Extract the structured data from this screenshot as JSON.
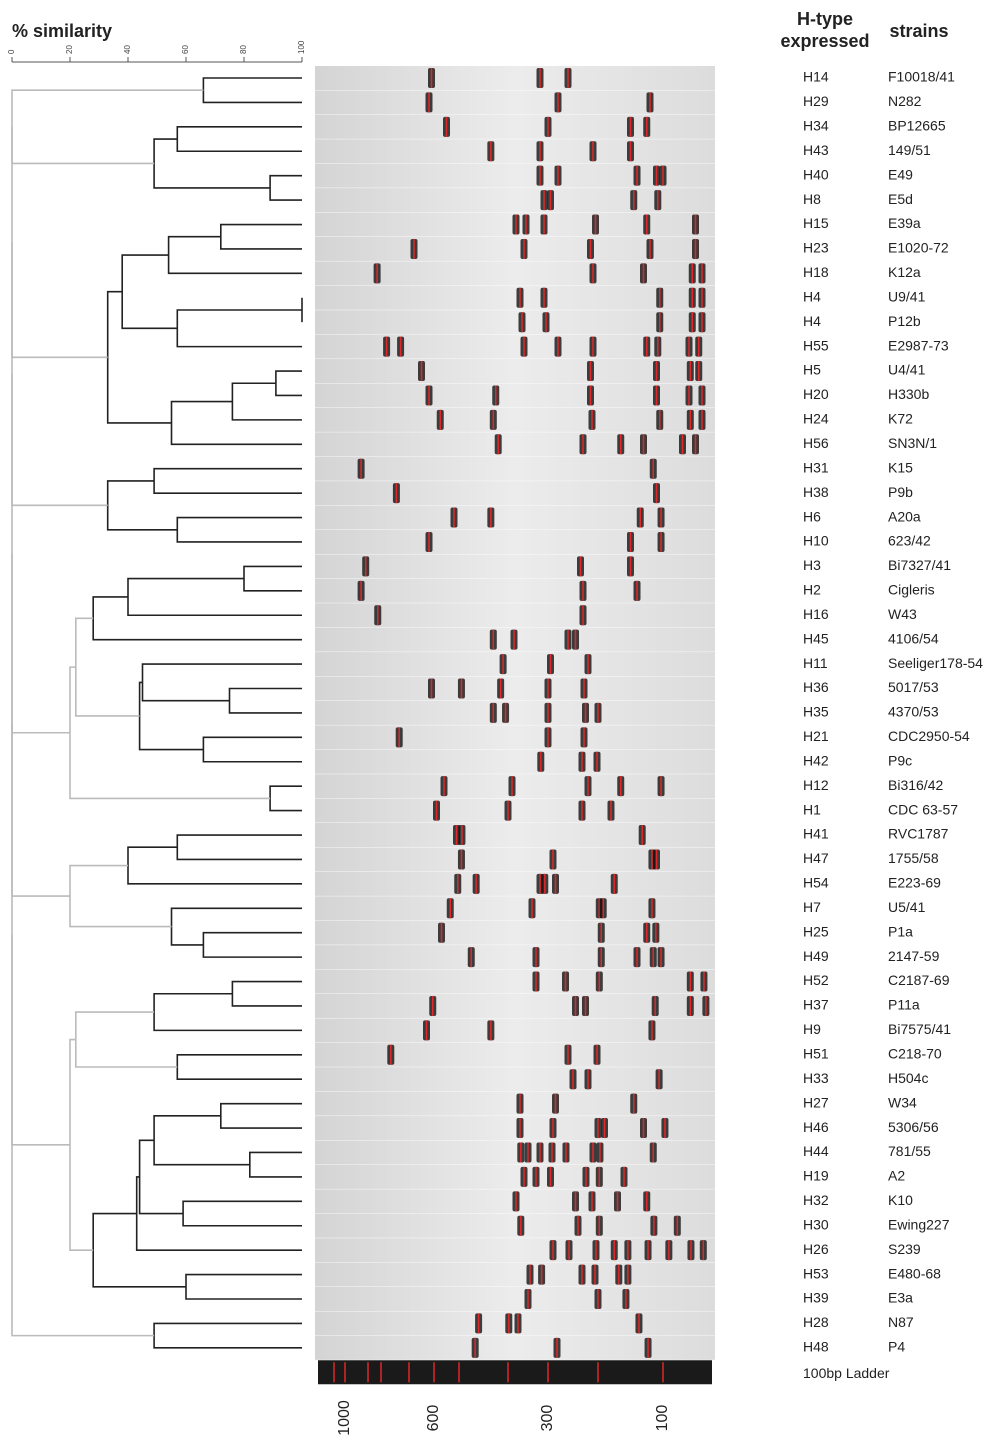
{
  "scale": {
    "label": "% similarity",
    "ticks": [
      0,
      20,
      40,
      60,
      80,
      100
    ]
  },
  "headers": {
    "htype": [
      "H-type",
      "expressed"
    ],
    "strains": "strains"
  },
  "rows": [
    {
      "htype": "H14",
      "strain": "F10018/41",
      "bands": [
        610,
        320,
        260
      ]
    },
    {
      "htype": "H29",
      "strain": "N282",
      "bands": [
        620,
        280,
        120
      ]
    },
    {
      "htype": "H34",
      "strain": "BP12665",
      "bands": [
        550,
        300,
        150,
        125
      ]
    },
    {
      "htype": "H43",
      "strain": "149/51",
      "bands": [
        435,
        320,
        210,
        150
      ]
    },
    {
      "htype": "H40",
      "strain": "E49",
      "bands": [
        320,
        280,
        140,
        110,
        100
      ]
    },
    {
      "htype": "H8",
      "strain": "E5d",
      "bands": [
        310,
        295,
        145,
        108
      ]
    },
    {
      "htype": "H15",
      "strain": "E39a",
      "bands": [
        380,
        355,
        310,
        205,
        125,
        50
      ]
    },
    {
      "htype": "H23",
      "strain": "E1020-72",
      "bands": [
        680,
        360,
        215,
        120,
        50
      ]
    },
    {
      "htype": "H18",
      "strain": "K12a",
      "bands": [
        830,
        210,
        130,
        55,
        40
      ]
    },
    {
      "htype": "H4",
      "strain": "U9/41",
      "bands": [
        370,
        310,
        105,
        55,
        40
      ]
    },
    {
      "htype": "H4",
      "strain": "P12b",
      "bands": [
        365,
        305,
        105,
        55,
        40
      ]
    },
    {
      "htype": "H55",
      "strain": "E2987-73",
      "bands": [
        780,
        730,
        360,
        280,
        210,
        125,
        108,
        60,
        45
      ]
    },
    {
      "htype": "H5",
      "strain": "U4/41",
      "bands": [
        650,
        215,
        110,
        58,
        45
      ]
    },
    {
      "htype": "H20",
      "strain": "H330b",
      "bands": [
        620,
        425,
        215,
        110,
        60,
        40
      ]
    },
    {
      "htype": "H24",
      "strain": "K72",
      "bands": [
        575,
        430,
        212,
        105,
        58,
        40
      ]
    },
    {
      "htype": "H56",
      "strain": "SN3N/1",
      "bands": [
        420,
        230,
        165,
        130,
        70,
        50
      ]
    },
    {
      "htype": "H31",
      "strain": "K15",
      "bands": [
        930,
        115
      ]
    },
    {
      "htype": "H38",
      "strain": "P9b",
      "bands": [
        745,
        110
      ]
    },
    {
      "htype": "H6",
      "strain": "A20a",
      "bands": [
        520,
        435,
        135,
        103
      ]
    },
    {
      "htype": "H10",
      "strain": "623/42",
      "bands": [
        620,
        150,
        103
      ]
    },
    {
      "htype": "H3",
      "strain": "Bi7327/41",
      "bands": [
        910,
        235,
        150
      ]
    },
    {
      "htype": "H2",
      "strain": "Cigleris",
      "bands": [
        930,
        230,
        140
      ]
    },
    {
      "htype": "H16",
      "strain": "W43",
      "bands": [
        825,
        230
      ]
    },
    {
      "htype": "H45",
      "strain": "4106/54",
      "bands": [
        430,
        385,
        260,
        245
      ]
    },
    {
      "htype": "H11",
      "strain": "Seeliger178-54",
      "bands": [
        410,
        295,
        220
      ]
    },
    {
      "htype": "H36",
      "strain": "5017/53",
      "bands": [
        610,
        495,
        415,
        300,
        228
      ]
    },
    {
      "htype": "H35",
      "strain": "4370/53",
      "bands": [
        430,
        405,
        300,
        225,
        200
      ]
    },
    {
      "htype": "H21",
      "strain": "CDC2950-54",
      "bands": [
        735,
        300,
        228
      ]
    },
    {
      "htype": "H42",
      "strain": "P9c",
      "bands": [
        318,
        232,
        202
      ]
    },
    {
      "htype": "H12",
      "strain": "Bi316/42",
      "bands": [
        560,
        390,
        220,
        165,
        103
      ]
    },
    {
      "htype": "H1",
      "strain": "CDC 63-57",
      "bands": [
        590,
        400,
        232,
        180
      ]
    },
    {
      "htype": "H41",
      "strain": "RVC1787",
      "bands": [
        510,
        494,
        132
      ]
    },
    {
      "htype": "H47",
      "strain": "1755/58",
      "bands": [
        495,
        290,
        117,
        110
      ]
    },
    {
      "htype": "H54",
      "strain": "E223-69",
      "bands": [
        505,
        465,
        320,
        308,
        285,
        175
      ]
    },
    {
      "htype": "H7",
      "strain": "U5/41",
      "bands": [
        535,
        340,
        198,
        192,
        117
      ]
    },
    {
      "htype": "H25",
      "strain": "P1a",
      "bands": [
        570,
        195,
        125,
        111
      ]
    },
    {
      "htype": "H49",
      "strain": "2147-59",
      "bands": [
        475,
        330,
        195,
        140,
        115,
        103
      ]
    },
    {
      "htype": "H52",
      "strain": "C2187-69",
      "bands": [
        330,
        265,
        198,
        58,
        37
      ]
    },
    {
      "htype": "H37",
      "strain": "P11a",
      "bands": [
        605,
        245,
        225,
        112,
        58,
        34
      ]
    },
    {
      "htype": "H9",
      "strain": "Bi7575/41",
      "bands": [
        630,
        435,
        117
      ]
    },
    {
      "htype": "H51",
      "strain": "C218-70",
      "bands": [
        765,
        260,
        202
      ]
    },
    {
      "htype": "H33",
      "strain": "H504c",
      "bands": [
        250,
        220,
        106
      ]
    },
    {
      "htype": "H27",
      "strain": "W34",
      "bands": [
        370,
        285,
        145
      ]
    },
    {
      "htype": "H46",
      "strain": "5306/56",
      "bands": [
        370,
        290,
        200,
        190,
        130,
        97
      ]
    },
    {
      "htype": "H44",
      "strain": "781/55",
      "bands": [
        368,
        350,
        320,
        292,
        264,
        210,
        197,
        115
      ]
    },
    {
      "htype": "H19",
      "strain": "A2",
      "bands": [
        360,
        330,
        295,
        224,
        198,
        160
      ]
    },
    {
      "htype": "H32",
      "strain": "K10",
      "bands": [
        380,
        245,
        212,
        170,
        125
      ]
    },
    {
      "htype": "H30",
      "strain": "Ewing227",
      "bands": [
        368,
        240,
        198,
        114,
        78
      ]
    },
    {
      "htype": "H26",
      "strain": "S239",
      "bands": [
        290,
        258,
        204,
        175,
        154,
        123,
        91,
        57,
        38
      ]
    },
    {
      "htype": "H53",
      "strain": "E480-68",
      "bands": [
        345,
        316,
        232,
        206,
        168,
        154
      ]
    },
    {
      "htype": "H39",
      "strain": "E3a",
      "bands": [
        350,
        200,
        157
      ]
    },
    {
      "htype": "H28",
      "strain": "N87",
      "bands": [
        460,
        398,
        375,
        137
      ]
    },
    {
      "htype": "H48",
      "strain": "P4",
      "bands": [
        467,
        282,
        123
      ]
    }
  ],
  "ladder": {
    "label": "100bp Ladder",
    "bands": [
      1500,
      1000,
      900,
      800,
      700,
      600,
      500,
      400,
      300,
      200,
      100
    ],
    "ticks": [
      1000,
      600,
      300,
      100
    ]
  },
  "dendrogram": {
    "merges": [
      [
        0,
        1,
        66
      ],
      [
        2,
        3,
        57
      ],
      [
        4,
        5,
        89
      ],
      [
        54,
        55,
        49
      ],
      [
        6,
        7,
        72
      ],
      [
        57,
        8,
        54
      ],
      [
        9,
        10,
        100
      ],
      [
        59,
        11,
        57
      ],
      [
        58,
        60,
        38
      ],
      [
        12,
        13,
        91
      ],
      [
        62,
        14,
        76
      ],
      [
        63,
        15,
        55
      ],
      [
        61,
        64,
        33
      ],
      [
        16,
        17,
        49
      ],
      [
        18,
        19,
        57
      ],
      [
        66,
        67,
        33
      ],
      [
        20,
        21,
        80
      ],
      [
        69,
        22,
        40
      ],
      [
        70,
        23,
        28
      ],
      [
        25,
        26,
        75
      ],
      [
        24,
        72,
        45
      ],
      [
        27,
        28,
        66
      ],
      [
        73,
        74,
        44
      ],
      [
        71,
        75,
        22
      ],
      [
        29,
        30,
        89
      ],
      [
        76,
        77,
        20
      ],
      [
        31,
        32,
        57
      ],
      [
        79,
        33,
        40
      ],
      [
        35,
        36,
        66
      ],
      [
        34,
        81,
        55
      ],
      [
        80,
        82,
        20
      ],
      [
        37,
        38,
        76
      ],
      [
        84,
        39,
        49
      ],
      [
        40,
        41,
        57
      ],
      [
        85,
        86,
        22
      ],
      [
        42,
        43,
        72
      ],
      [
        44,
        45,
        82
      ],
      [
        88,
        89,
        49
      ],
      [
        46,
        47,
        59
      ],
      [
        90,
        91,
        44
      ],
      [
        92,
        48,
        43
      ],
      [
        49,
        50,
        60
      ],
      [
        93,
        94,
        28
      ],
      [
        87,
        95,
        20
      ],
      [
        51,
        52,
        49
      ],
      [
        53,
        56,
        0
      ],
      [
        98,
        65,
        0
      ],
      [
        99,
        68,
        0
      ],
      [
        100,
        78,
        0
      ],
      [
        101,
        83,
        0
      ],
      [
        102,
        96,
        0
      ],
      [
        103,
        97,
        0
      ]
    ]
  }
}
